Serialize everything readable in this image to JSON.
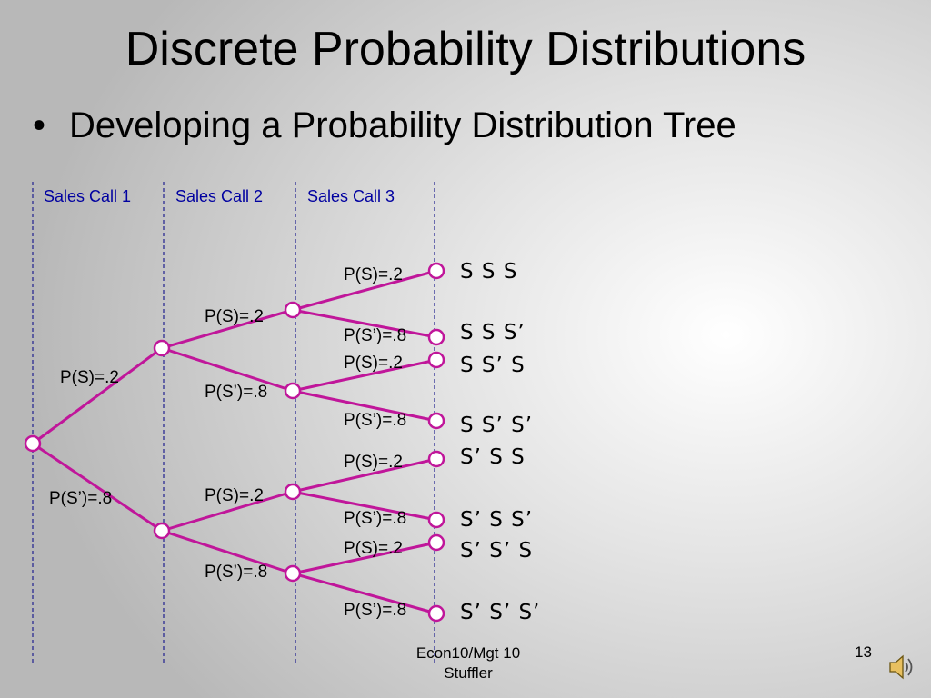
{
  "slide": {
    "title": "Discrete Probability Distributions",
    "bullet": "Developing a Probability Distribution Tree",
    "footer_line1": "Econ10/Mgt 10",
    "footer_line2": "Stuffler",
    "page_number": "13"
  },
  "tree": {
    "columns": [
      "Sales Call 1",
      "Sales Call 2",
      "Sales Call 3"
    ],
    "call1": {
      "p_success": "P(S)=.2",
      "p_fail": "P(S’)=.8"
    },
    "call2": [
      {
        "p_success": "P(S)=.2",
        "p_fail": "P(S’)=.8"
      },
      {
        "p_success": "P(S)=.2",
        "p_fail": "P(S’)=.8"
      }
    ],
    "call3": [
      {
        "p_success": "P(S)=.2",
        "p_fail": "P(S’)=.8"
      },
      {
        "p_success": "P(S)=.2",
        "p_fail": "P(S’)=.8"
      },
      {
        "p_success": "P(S)=.2",
        "p_fail": "P(S’)=.8"
      },
      {
        "p_success": "P(S)=.2",
        "p_fail": "P(S’)=.8"
      }
    ],
    "outcomes": [
      "S S S",
      "S S S’",
      "S S’ S",
      "S S’ S’",
      "S’ S S",
      "S’ S S’",
      "S’ S’ S",
      "S’ S’ S’"
    ]
  },
  "colors": {
    "branch": "#c0169a",
    "guide": "#1f1f8f",
    "label": "#0000a0"
  },
  "icons": {
    "speaker": "speaker-icon"
  }
}
